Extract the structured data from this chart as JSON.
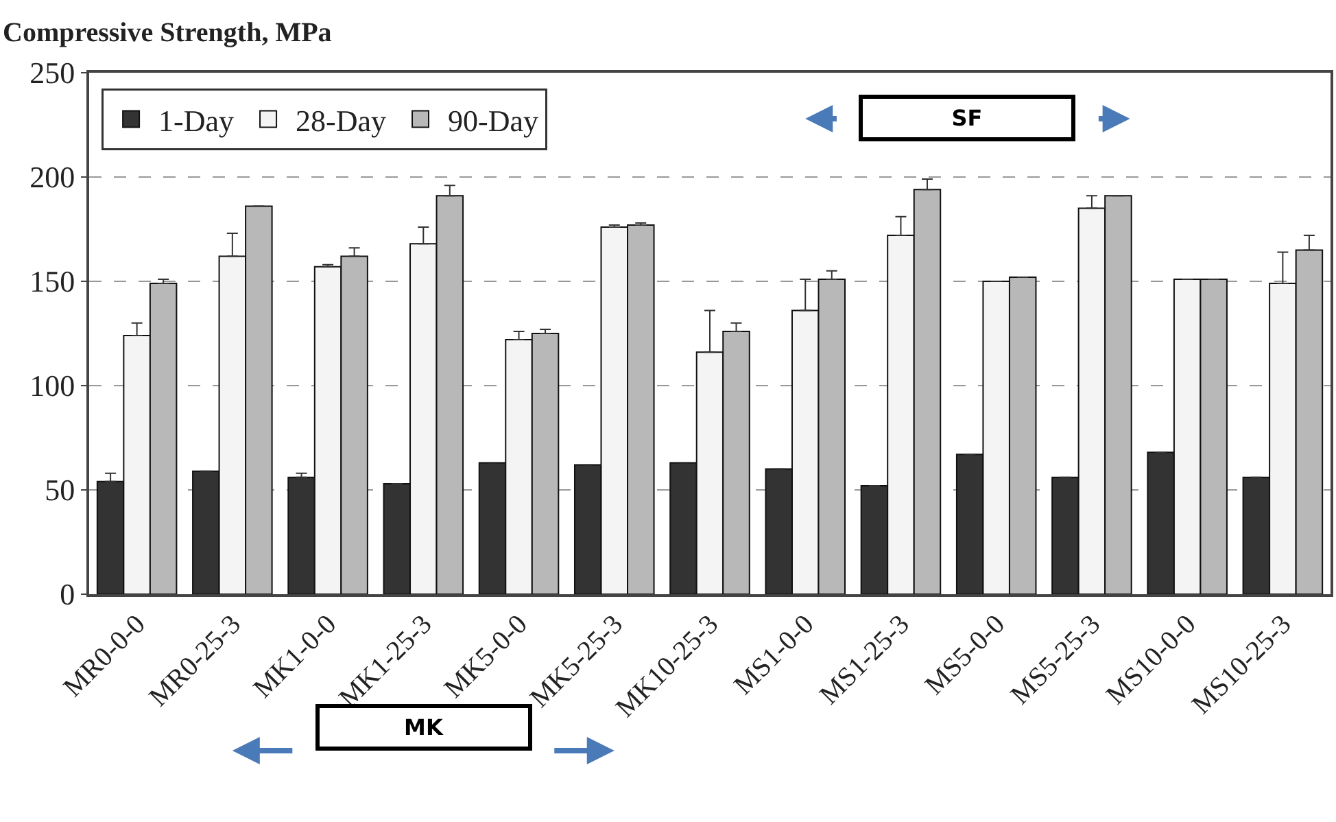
{
  "chart_data": {
    "type": "bar",
    "ylabel": "Compressive Strength, MPa",
    "categories": [
      "MR0-0-0",
      "MR0-25-3",
      "MK1-0-0",
      "MK1-25-3",
      "MK5-0-0",
      "MK5-25-3",
      "MK10-25-3",
      "MS1-0-0",
      "MS1-25-3",
      "MS5-0-0",
      "MS5-25-3",
      "MS10-0-0",
      "MS10-25-3"
    ],
    "series": [
      {
        "name": "1-Day",
        "color": "#333333",
        "values": [
          54,
          59,
          56,
          53,
          63,
          62,
          63,
          60,
          52,
          67,
          56,
          68,
          56
        ],
        "errors": [
          4,
          null,
          2,
          null,
          null,
          null,
          null,
          null,
          null,
          null,
          null,
          null,
          null
        ]
      },
      {
        "name": "28-Day",
        "color": "#f4f4f4",
        "values": [
          124,
          162,
          157,
          168,
          122,
          176,
          116,
          136,
          172,
          150,
          185,
          151,
          149
        ],
        "errors": [
          6,
          11,
          1,
          8,
          4,
          1,
          20,
          15,
          9,
          null,
          6,
          null,
          15
        ]
      },
      {
        "name": "90-Day",
        "color": "#b8b8b8",
        "values": [
          149,
          186,
          162,
          191,
          125,
          177,
          126,
          151,
          194,
          152,
          191,
          151,
          165
        ],
        "errors": [
          2,
          null,
          4,
          5,
          2,
          1,
          4,
          4,
          5,
          null,
          null,
          null,
          7
        ]
      }
    ],
    "ylim": [
      0,
      250
    ],
    "yticks": [
      0,
      50,
      100,
      150,
      200,
      250
    ],
    "grid": "y",
    "legend": "top left",
    "annotations": [
      "SF",
      "MK"
    ]
  }
}
